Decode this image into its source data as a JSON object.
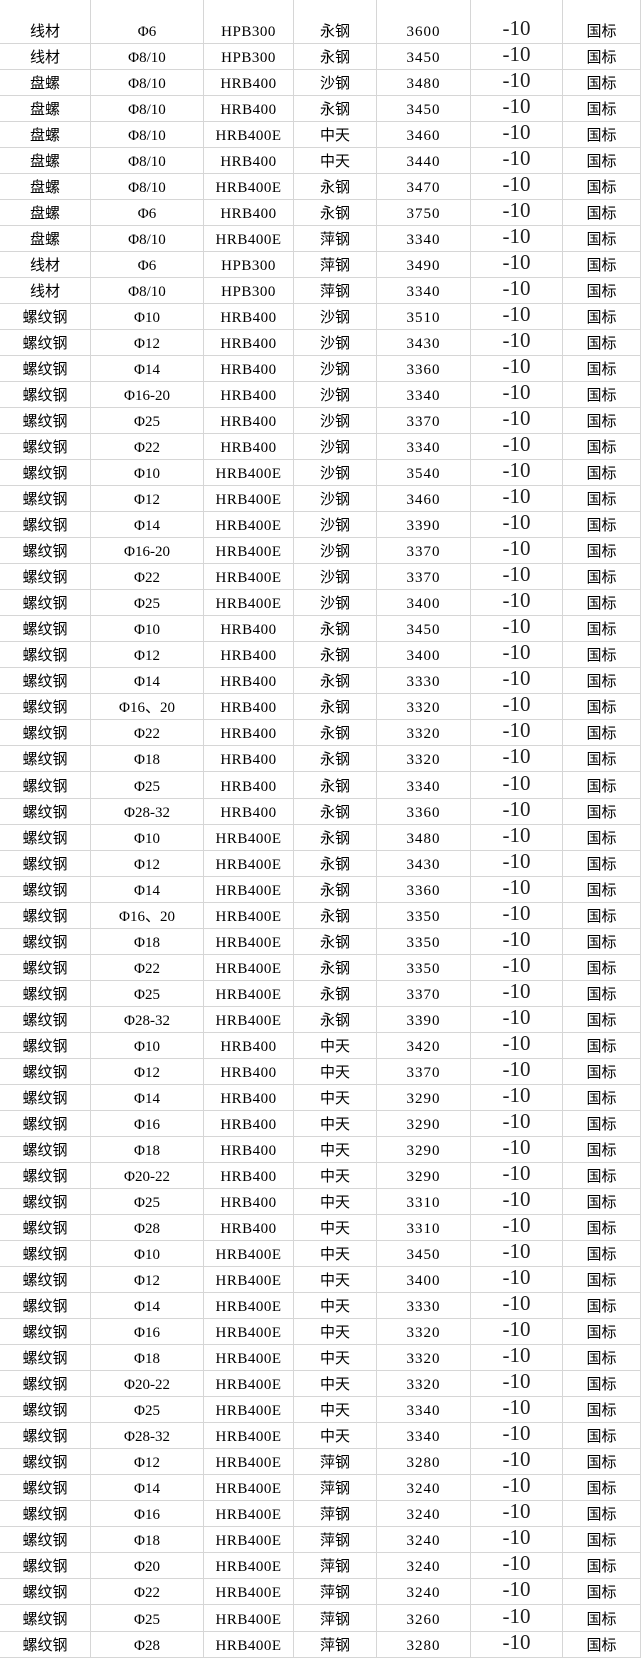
{
  "colors": {
    "gridline": "#d6d6d6",
    "text": "#000000",
    "change_text": "#1f1f1f",
    "background": "#ffffff"
  },
  "table": {
    "rows": [
      {
        "product": "线材",
        "spec": "Φ6",
        "grade": "HPB300",
        "mill": "永钢",
        "price": "3600",
        "change": "-10",
        "note": "国标"
      },
      {
        "product": "线材",
        "spec": "Φ8/10",
        "grade": "HPB300",
        "mill": "永钢",
        "price": "3450",
        "change": "-10",
        "note": "国标"
      },
      {
        "product": "盘螺",
        "spec": "Φ8/10",
        "grade": "HRB400",
        "mill": "沙钢",
        "price": "3480",
        "change": "-10",
        "note": "国标"
      },
      {
        "product": "盘螺",
        "spec": "Φ8/10",
        "grade": "HRB400",
        "mill": "永钢",
        "price": "3450",
        "change": "-10",
        "note": "国标"
      },
      {
        "product": "盘螺",
        "spec": "Φ8/10",
        "grade": "HRB400E",
        "mill": "中天",
        "price": "3460",
        "change": "-10",
        "note": "国标"
      },
      {
        "product": "盘螺",
        "spec": "Φ8/10",
        "grade": "HRB400",
        "mill": "中天",
        "price": "3440",
        "change": "-10",
        "note": "国标"
      },
      {
        "product": "盘螺",
        "spec": "Φ8/10",
        "grade": "HRB400E",
        "mill": "永钢",
        "price": "3470",
        "change": "-10",
        "note": "国标"
      },
      {
        "product": "盘螺",
        "spec": "Φ6",
        "grade": "HRB400",
        "mill": "永钢",
        "price": "3750",
        "change": "-10",
        "note": "国标"
      },
      {
        "product": "盘螺",
        "spec": "Φ8/10",
        "grade": "HRB400E",
        "mill": "萍钢",
        "price": "3340",
        "change": "-10",
        "note": "国标"
      },
      {
        "product": "线材",
        "spec": "Φ6",
        "grade": "HPB300",
        "mill": "萍钢",
        "price": "3490",
        "change": "-10",
        "note": "国标"
      },
      {
        "product": "线材",
        "spec": "Φ8/10",
        "grade": "HPB300",
        "mill": "萍钢",
        "price": "3340",
        "change": "-10",
        "note": "国标"
      },
      {
        "product": "螺纹钢",
        "spec": "Φ10",
        "grade": "HRB400",
        "mill": "沙钢",
        "price": "3510",
        "change": "-10",
        "note": "国标"
      },
      {
        "product": "螺纹钢",
        "spec": "Φ12",
        "grade": "HRB400",
        "mill": "沙钢",
        "price": "3430",
        "change": "-10",
        "note": "国标"
      },
      {
        "product": "螺纹钢",
        "spec": "Φ14",
        "grade": "HRB400",
        "mill": "沙钢",
        "price": "3360",
        "change": "-10",
        "note": "国标"
      },
      {
        "product": "螺纹钢",
        "spec": "Φ16-20",
        "grade": "HRB400",
        "mill": "沙钢",
        "price": "3340",
        "change": "-10",
        "note": "国标"
      },
      {
        "product": "螺纹钢",
        "spec": "Φ25",
        "grade": "HRB400",
        "mill": "沙钢",
        "price": "3370",
        "change": "-10",
        "note": "国标"
      },
      {
        "product": "螺纹钢",
        "spec": "Φ22",
        "grade": "HRB400",
        "mill": "沙钢",
        "price": "3340",
        "change": "-10",
        "note": "国标"
      },
      {
        "product": "螺纹钢",
        "spec": "Φ10",
        "grade": "HRB400E",
        "mill": "沙钢",
        "price": "3540",
        "change": "-10",
        "note": "国标"
      },
      {
        "product": "螺纹钢",
        "spec": "Φ12",
        "grade": "HRB400E",
        "mill": "沙钢",
        "price": "3460",
        "change": "-10",
        "note": "国标"
      },
      {
        "product": "螺纹钢",
        "spec": "Φ14",
        "grade": "HRB400E",
        "mill": "沙钢",
        "price": "3390",
        "change": "-10",
        "note": "国标"
      },
      {
        "product": "螺纹钢",
        "spec": "Φ16-20",
        "grade": "HRB400E",
        "mill": "沙钢",
        "price": "3370",
        "change": "-10",
        "note": "国标"
      },
      {
        "product": "螺纹钢",
        "spec": "Φ22",
        "grade": "HRB400E",
        "mill": "沙钢",
        "price": "3370",
        "change": "-10",
        "note": "国标"
      },
      {
        "product": "螺纹钢",
        "spec": "Φ25",
        "grade": "HRB400E",
        "mill": "沙钢",
        "price": "3400",
        "change": "-10",
        "note": "国标"
      },
      {
        "product": "螺纹钢",
        "spec": "Φ10",
        "grade": "HRB400",
        "mill": "永钢",
        "price": "3450",
        "change": "-10",
        "note": "国标"
      },
      {
        "product": "螺纹钢",
        "spec": "Φ12",
        "grade": "HRB400",
        "mill": "永钢",
        "price": "3400",
        "change": "-10",
        "note": "国标"
      },
      {
        "product": "螺纹钢",
        "spec": "Φ14",
        "grade": "HRB400",
        "mill": "永钢",
        "price": "3330",
        "change": "-10",
        "note": "国标"
      },
      {
        "product": "螺纹钢",
        "spec": "Φ16、20",
        "grade": "HRB400",
        "mill": "永钢",
        "price": "3320",
        "change": "-10",
        "note": "国标"
      },
      {
        "product": "螺纹钢",
        "spec": "Φ22",
        "grade": "HRB400",
        "mill": "永钢",
        "price": "3320",
        "change": "-10",
        "note": "国标"
      },
      {
        "product": "螺纹钢",
        "spec": "Φ18",
        "grade": "HRB400",
        "mill": "永钢",
        "price": "3320",
        "change": "-10",
        "note": "国标"
      },
      {
        "product": "螺纹钢",
        "spec": "Φ25",
        "grade": "HRB400",
        "mill": "永钢",
        "price": "3340",
        "change": "-10",
        "note": "国标"
      },
      {
        "product": "螺纹钢",
        "spec": "Φ28-32",
        "grade": "HRB400",
        "mill": "永钢",
        "price": "3360",
        "change": "-10",
        "note": "国标"
      },
      {
        "product": "螺纹钢",
        "spec": "Φ10",
        "grade": "HRB400E",
        "mill": "永钢",
        "price": "3480",
        "change": "-10",
        "note": "国标"
      },
      {
        "product": "螺纹钢",
        "spec": "Φ12",
        "grade": "HRB400E",
        "mill": "永钢",
        "price": "3430",
        "change": "-10",
        "note": "国标"
      },
      {
        "product": "螺纹钢",
        "spec": "Φ14",
        "grade": "HRB400E",
        "mill": "永钢",
        "price": "3360",
        "change": "-10",
        "note": "国标"
      },
      {
        "product": "螺纹钢",
        "spec": "Φ16、20",
        "grade": "HRB400E",
        "mill": "永钢",
        "price": "3350",
        "change": "-10",
        "note": "国标"
      },
      {
        "product": "螺纹钢",
        "spec": "Φ18",
        "grade": "HRB400E",
        "mill": "永钢",
        "price": "3350",
        "change": "-10",
        "note": "国标"
      },
      {
        "product": "螺纹钢",
        "spec": "Φ22",
        "grade": "HRB400E",
        "mill": "永钢",
        "price": "3350",
        "change": "-10",
        "note": "国标"
      },
      {
        "product": "螺纹钢",
        "spec": "Φ25",
        "grade": "HRB400E",
        "mill": "永钢",
        "price": "3370",
        "change": "-10",
        "note": "国标"
      },
      {
        "product": "螺纹钢",
        "spec": "Φ28-32",
        "grade": "HRB400E",
        "mill": "永钢",
        "price": "3390",
        "change": "-10",
        "note": "国标"
      },
      {
        "product": "螺纹钢",
        "spec": "Φ10",
        "grade": "HRB400",
        "mill": "中天",
        "price": "3420",
        "change": "-10",
        "note": "国标"
      },
      {
        "product": "螺纹钢",
        "spec": "Φ12",
        "grade": "HRB400",
        "mill": "中天",
        "price": "3370",
        "change": "-10",
        "note": "国标"
      },
      {
        "product": "螺纹钢",
        "spec": "Φ14",
        "grade": "HRB400",
        "mill": "中天",
        "price": "3290",
        "change": "-10",
        "note": "国标"
      },
      {
        "product": "螺纹钢",
        "spec": "Φ16",
        "grade": "HRB400",
        "mill": "中天",
        "price": "3290",
        "change": "-10",
        "note": "国标"
      },
      {
        "product": "螺纹钢",
        "spec": "Φ18",
        "grade": "HRB400",
        "mill": "中天",
        "price": "3290",
        "change": "-10",
        "note": "国标"
      },
      {
        "product": "螺纹钢",
        "spec": "Φ20-22",
        "grade": "HRB400",
        "mill": "中天",
        "price": "3290",
        "change": "-10",
        "note": "国标"
      },
      {
        "product": "螺纹钢",
        "spec": "Φ25",
        "grade": "HRB400",
        "mill": "中天",
        "price": "3310",
        "change": "-10",
        "note": "国标"
      },
      {
        "product": "螺纹钢",
        "spec": "Φ28",
        "grade": "HRB400",
        "mill": "中天",
        "price": "3310",
        "change": "-10",
        "note": "国标"
      },
      {
        "product": "螺纹钢",
        "spec": "Φ10",
        "grade": "HRB400E",
        "mill": "中天",
        "price": "3450",
        "change": "-10",
        "note": "国标"
      },
      {
        "product": "螺纹钢",
        "spec": "Φ12",
        "grade": "HRB400E",
        "mill": "中天",
        "price": "3400",
        "change": "-10",
        "note": "国标"
      },
      {
        "product": "螺纹钢",
        "spec": "Φ14",
        "grade": "HRB400E",
        "mill": "中天",
        "price": "3330",
        "change": "-10",
        "note": "国标"
      },
      {
        "product": "螺纹钢",
        "spec": "Φ16",
        "grade": "HRB400E",
        "mill": "中天",
        "price": "3320",
        "change": "-10",
        "note": "国标"
      },
      {
        "product": "螺纹钢",
        "spec": "Φ18",
        "grade": "HRB400E",
        "mill": "中天",
        "price": "3320",
        "change": "-10",
        "note": "国标"
      },
      {
        "product": "螺纹钢",
        "spec": "Φ20-22",
        "grade": "HRB400E",
        "mill": "中天",
        "price": "3320",
        "change": "-10",
        "note": "国标"
      },
      {
        "product": "螺纹钢",
        "spec": "Φ25",
        "grade": "HRB400E",
        "mill": "中天",
        "price": "3340",
        "change": "-10",
        "note": "国标"
      },
      {
        "product": "螺纹钢",
        "spec": "Φ28-32",
        "grade": "HRB400E",
        "mill": "中天",
        "price": "3340",
        "change": "-10",
        "note": "国标"
      },
      {
        "product": "螺纹钢",
        "spec": "Φ12",
        "grade": "HRB400E",
        "mill": "萍钢",
        "price": "3280",
        "change": "-10",
        "note": "国标"
      },
      {
        "product": "螺纹钢",
        "spec": "Φ14",
        "grade": "HRB400E",
        "mill": "萍钢",
        "price": "3240",
        "change": "-10",
        "note": "国标"
      },
      {
        "product": "螺纹钢",
        "spec": "Φ16",
        "grade": "HRB400E",
        "mill": "萍钢",
        "price": "3240",
        "change": "-10",
        "note": "国标"
      },
      {
        "product": "螺纹钢",
        "spec": "Φ18",
        "grade": "HRB400E",
        "mill": "萍钢",
        "price": "3240",
        "change": "-10",
        "note": "国标"
      },
      {
        "product": "螺纹钢",
        "spec": "Φ20",
        "grade": "HRB400E",
        "mill": "萍钢",
        "price": "3240",
        "change": "-10",
        "note": "国标"
      },
      {
        "product": "螺纹钢",
        "spec": "Φ22",
        "grade": "HRB400E",
        "mill": "萍钢",
        "price": "3240",
        "change": "-10",
        "note": "国标"
      },
      {
        "product": "螺纹钢",
        "spec": "Φ25",
        "grade": "HRB400E",
        "mill": "萍钢",
        "price": "3260",
        "change": "-10",
        "note": "国标"
      },
      {
        "product": "螺纹钢",
        "spec": "Φ28",
        "grade": "HRB400E",
        "mill": "萍钢",
        "price": "3280",
        "change": "-10",
        "note": "国标"
      }
    ]
  }
}
